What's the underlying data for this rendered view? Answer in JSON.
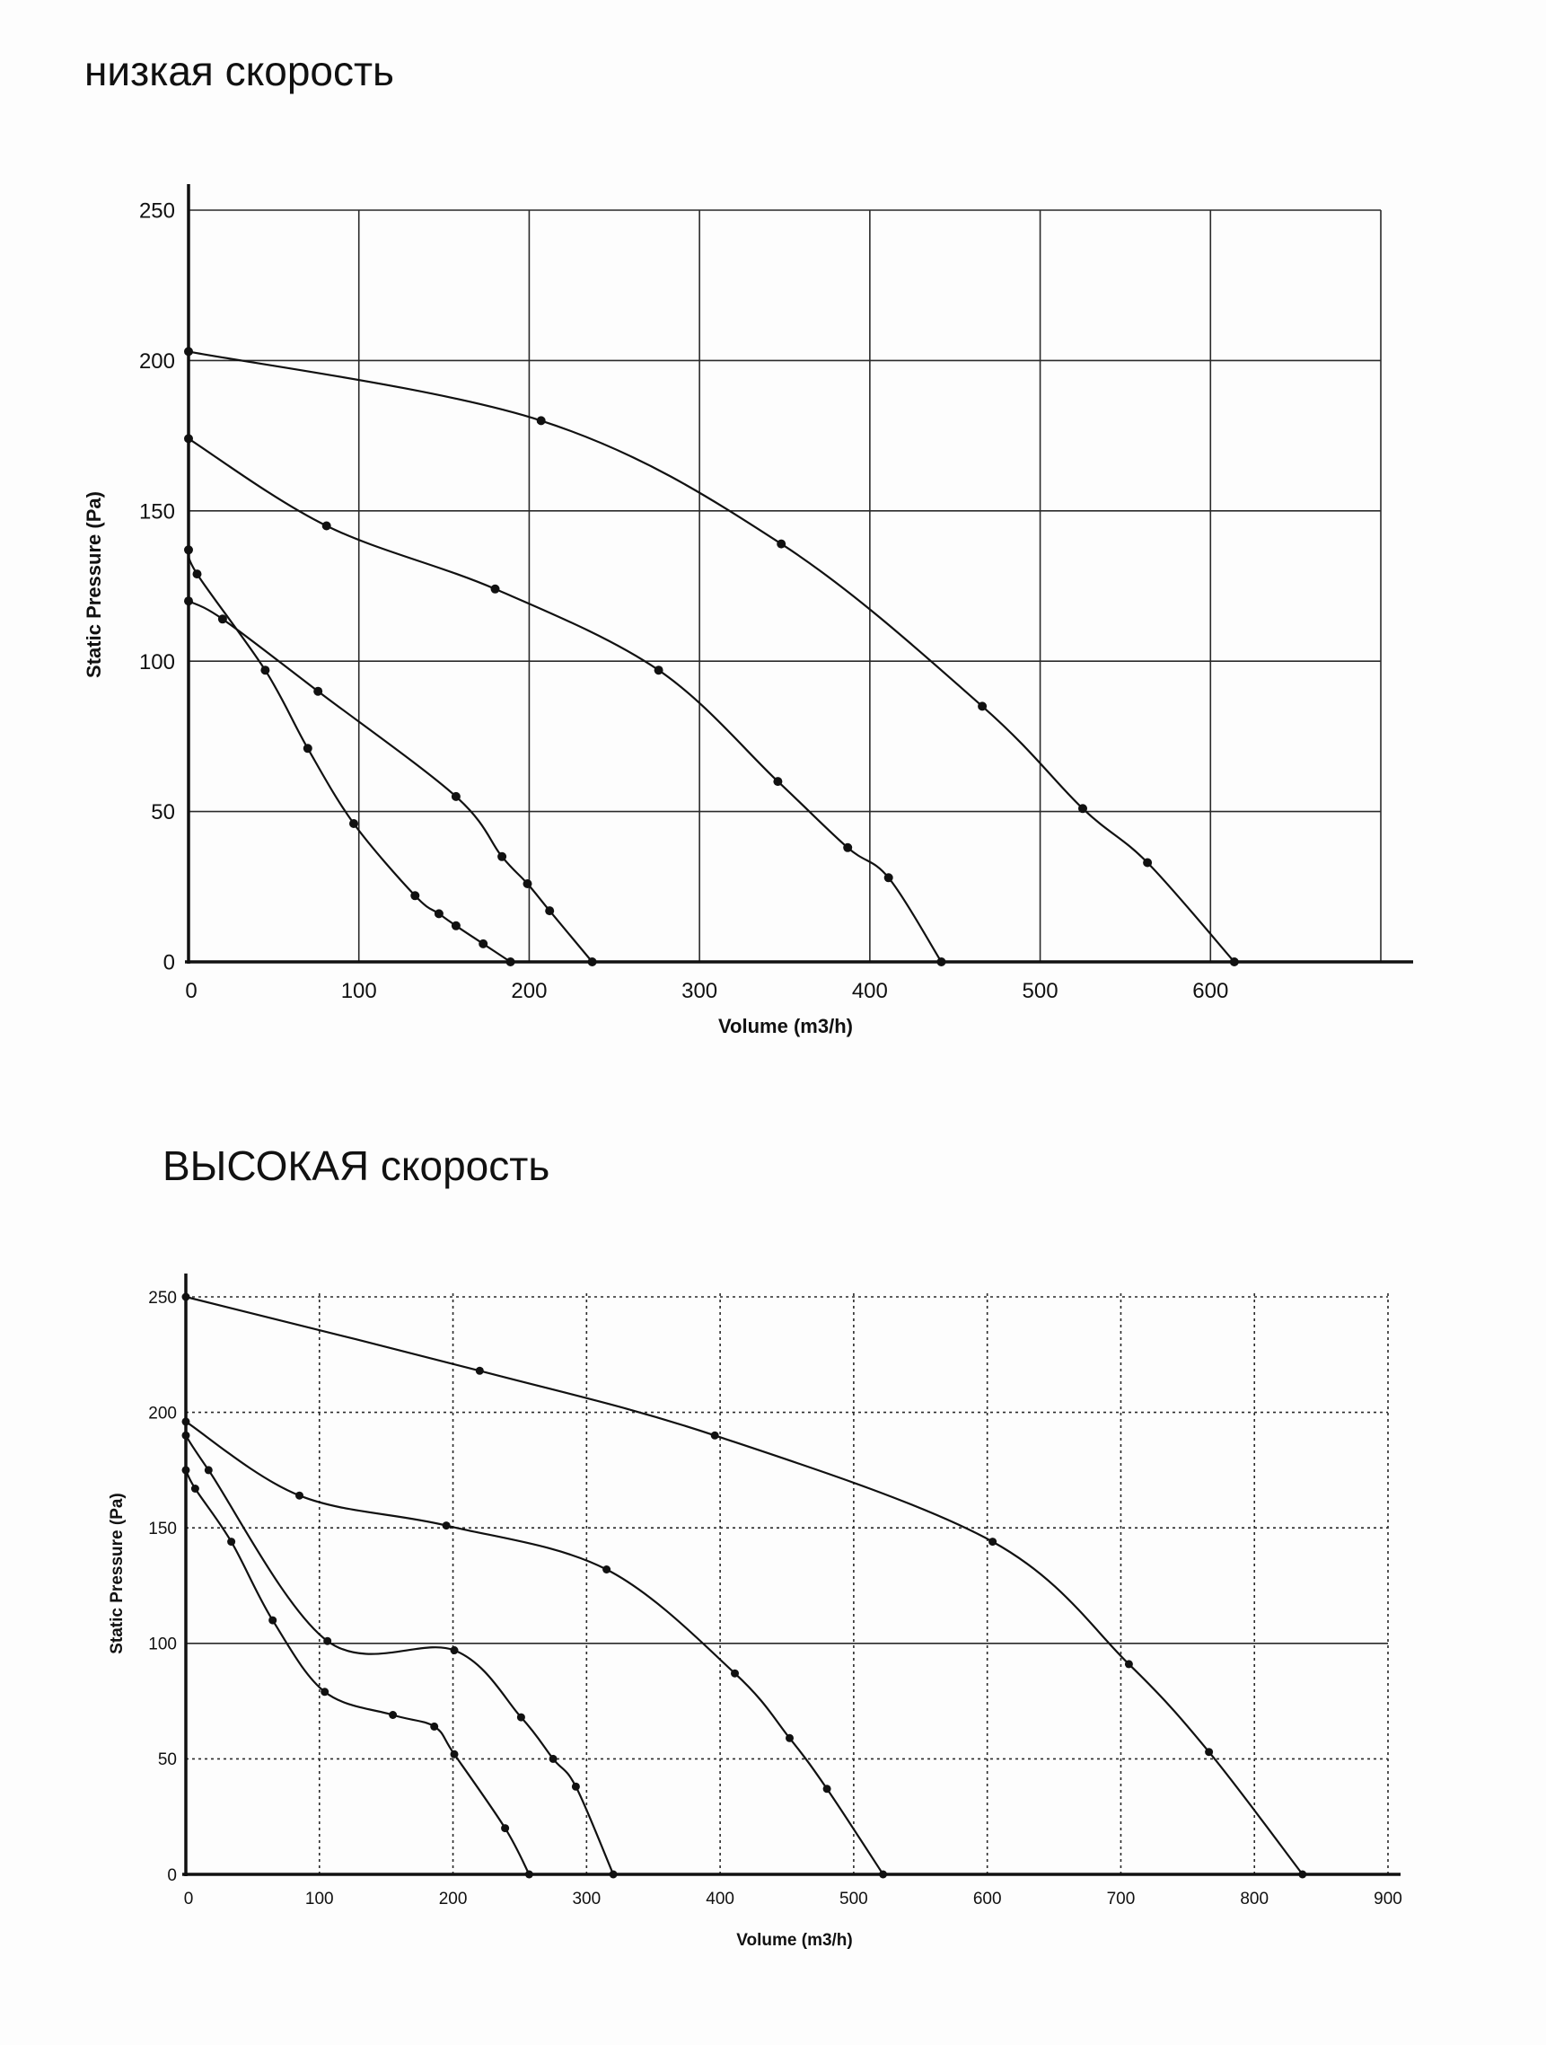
{
  "chart_data": [
    {
      "type": "line",
      "title": "низкая скорость",
      "xlabel": "Volume (m3/h)",
      "ylabel": "Static Pressure (Pa)",
      "xlim": [
        0,
        700
      ],
      "ylim": [
        0,
        250
      ],
      "x_ticks": [
        0,
        100,
        200,
        300,
        400,
        500,
        600
      ],
      "y_ticks": [
        0,
        50,
        100,
        150,
        200,
        250
      ],
      "grid": true,
      "series": [
        {
          "x": [
            0,
            207,
            348,
            466,
            525,
            563,
            614
          ],
          "y": [
            203,
            180,
            139,
            85,
            51,
            33,
            0
          ]
        },
        {
          "x": [
            0,
            81,
            180,
            276,
            346,
            387,
            411,
            442
          ],
          "y": [
            174,
            145,
            124,
            97,
            60,
            38,
            28,
            0
          ]
        },
        {
          "x": [
            0,
            20,
            76,
            157,
            184,
            199,
            212,
            237
          ],
          "y": [
            120,
            114,
            90,
            55,
            35,
            26,
            17,
            0
          ]
        },
        {
          "x": [
            0,
            5,
            45,
            70,
            97,
            133,
            147,
            157,
            173,
            189
          ],
          "y": [
            137,
            129,
            97,
            71,
            46,
            22,
            16,
            12,
            6,
            0
          ]
        }
      ]
    },
    {
      "type": "line",
      "title": "ВЫСОКАЯ скорость",
      "xlabel": "Volume (m3/h)",
      "ylabel": "Static Pressure (Pa)",
      "xlim": [
        0,
        900
      ],
      "ylim": [
        0,
        250
      ],
      "x_ticks": [
        0,
        100,
        200,
        300,
        400,
        500,
        600,
        700,
        800,
        900
      ],
      "y_ticks": [
        0,
        50,
        100,
        150,
        200,
        250
      ],
      "grid": true,
      "series": [
        {
          "x": [
            0,
            220,
            396,
            604,
            706,
            766,
            836
          ],
          "y": [
            250,
            218,
            190,
            144,
            91,
            53,
            0
          ]
        },
        {
          "x": [
            0,
            85,
            195,
            315,
            411,
            452,
            480,
            522
          ],
          "y": [
            196,
            164,
            151,
            132,
            87,
            59,
            37,
            0
          ]
        },
        {
          "x": [
            0,
            17,
            106,
            201,
            251,
            275,
            292,
            320
          ],
          "y": [
            190,
            175,
            101,
            97,
            68,
            50,
            38,
            0
          ]
        },
        {
          "x": [
            0,
            7,
            34,
            65,
            104,
            155,
            186,
            201,
            239,
            257
          ],
          "y": [
            175,
            167,
            144,
            110,
            79,
            69,
            64,
            52,
            20,
            0
          ]
        }
      ]
    }
  ]
}
